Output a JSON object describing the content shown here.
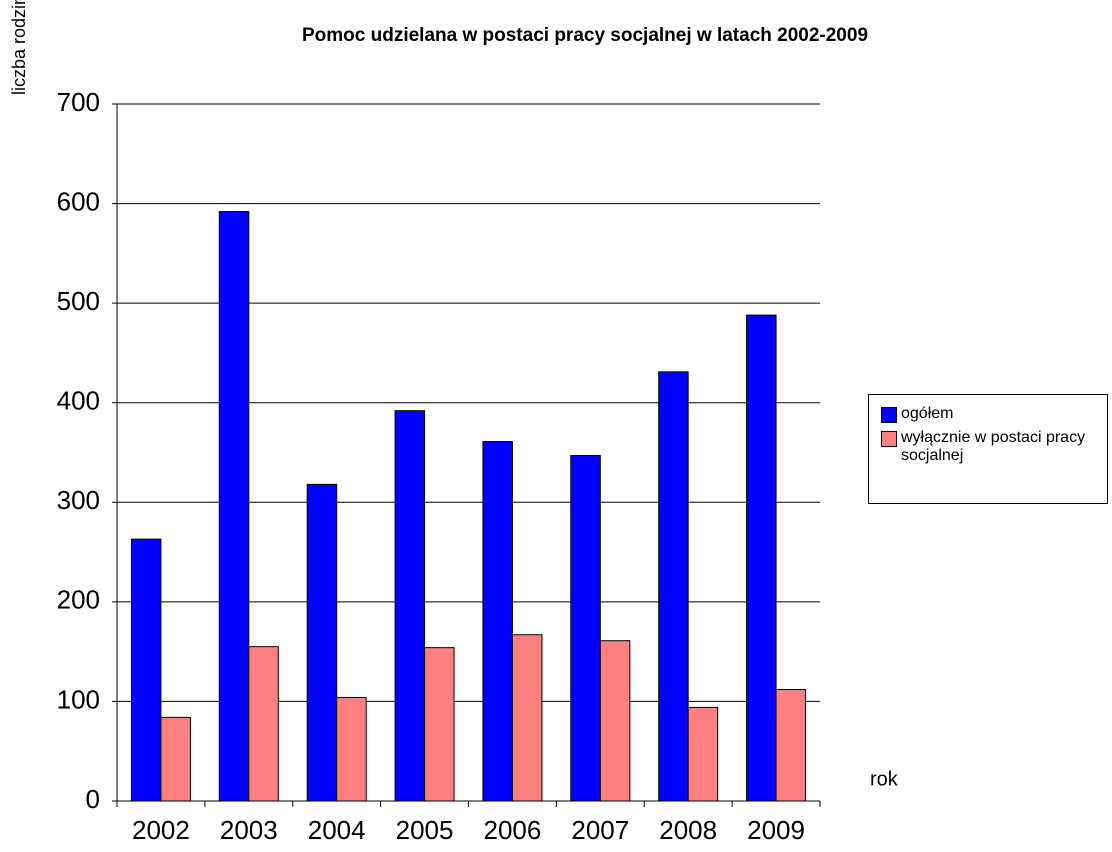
{
  "chart_data": {
    "type": "bar",
    "title": "Pomoc udzielana w postaci pracy socjalnej w latach 2002-2009",
    "y_label": "liczba rodzin",
    "x_label": "rok",
    "categories": [
      "2002",
      "2003",
      "2004",
      "2005",
      "2006",
      "2007",
      "2008",
      "2009"
    ],
    "series": [
      {
        "name": "ogółem",
        "color": "#0000ff",
        "values": [
          263,
          592,
          318,
          392,
          361,
          347,
          431,
          488
        ]
      },
      {
        "name": "wyłącznie w postaci pracy socjalnej",
        "color": "#ff8080",
        "values": [
          84,
          155,
          104,
          154,
          167,
          161,
          94,
          112
        ]
      }
    ],
    "ylim": [
      0,
      700
    ],
    "yticks": [
      0,
      100,
      200,
      300,
      400,
      500,
      600,
      700
    ],
    "grid": true,
    "legend": "right"
  }
}
